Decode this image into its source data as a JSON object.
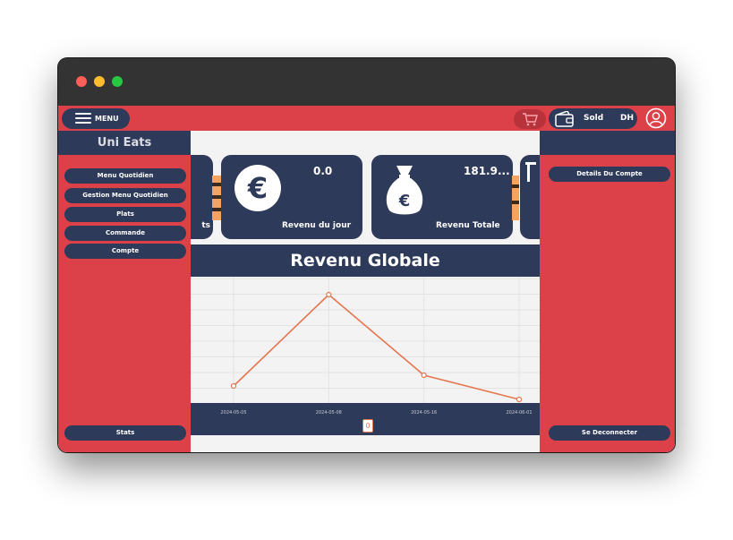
{
  "topbar": {
    "menu_label": "MENU",
    "wallet_label": "Sold",
    "currency": "DH"
  },
  "sidebar": {
    "brand": "Uni Eats",
    "items": [
      {
        "label": "Menu Quotidien"
      },
      {
        "label": "Gestion Menu Quotidien"
      },
      {
        "label": "Plats"
      },
      {
        "label": "Commande"
      },
      {
        "label": "Compte"
      }
    ],
    "bottom_label": "Stats"
  },
  "right_panel": {
    "account_details": "Details Du Compte",
    "logout": "Se Deconnecter"
  },
  "cards": [
    {
      "label": "ts"
    },
    {
      "value": "0.0",
      "label": "Revenu du jour",
      "icon": "euro-icon"
    },
    {
      "value": "181.9...",
      "label": "Revenu Totale",
      "icon": "money-bag-icon"
    }
  ],
  "chart_section": {
    "title": "Revenu Globale",
    "slider_value": "0"
  },
  "colors": {
    "accent_red": "#dc414a",
    "navy": "#2e3a59",
    "line": "#e5764f"
  },
  "chart_data": {
    "type": "line",
    "categories": [
      "2024-05-05",
      "2024-05-08",
      "2024-05-16",
      "2024-06-01"
    ],
    "values": [
      6,
      40,
      10,
      1
    ],
    "ylim": [
      0,
      42
    ],
    "grid": true,
    "title": "",
    "xlabel": "",
    "ylabel": ""
  }
}
